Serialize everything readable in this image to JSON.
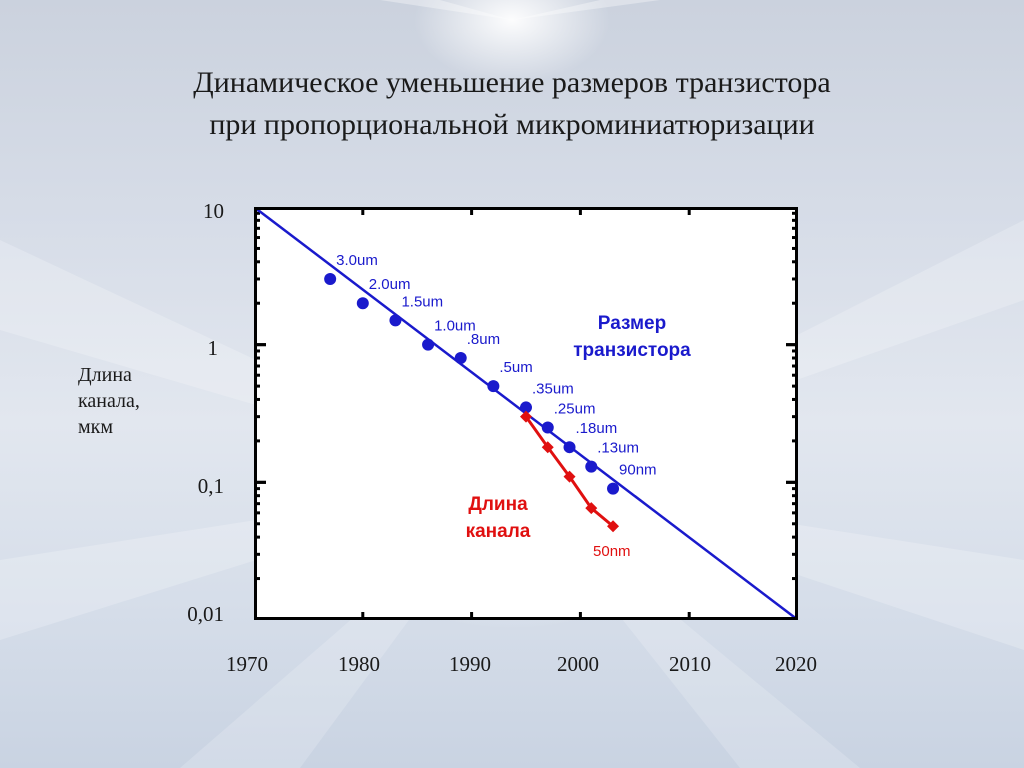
{
  "title": {
    "line1": "Динамическое уменьшение размеров транзистора",
    "line2": "при пропорциональной микроминиатюризации"
  },
  "ylabel": {
    "line1": "Длина",
    "line2": "канала,",
    "line3": "мкм"
  },
  "chart_data": {
    "type": "scatter",
    "title": "Динамическое уменьшение размеров транзистора при пропорциональной микроминиатюризации",
    "xlabel": "",
    "ylabel": "Длина канала, мкм",
    "xlim": [
      1970,
      2020
    ],
    "ylim": [
      0.01,
      10
    ],
    "yscale": "log",
    "x_ticks": [
      "1970",
      "1980",
      "1990",
      "2000",
      "2010",
      "2020"
    ],
    "y_ticks": [
      "10",
      "1",
      "0,1",
      "0,01"
    ],
    "y_tick_values": [
      10,
      1,
      0.1,
      0.01
    ],
    "grid": false,
    "series": [
      {
        "name": "Размер транзистора",
        "name_lines": [
          "Размер",
          "транзистора"
        ],
        "color": "#1a1acc",
        "marker": "circle",
        "points": [
          {
            "x": 1977,
            "y": 3.0,
            "label": "3.0um"
          },
          {
            "x": 1980,
            "y": 2.0,
            "label": "2.0um"
          },
          {
            "x": 1983,
            "y": 1.5,
            "label": "1.5um"
          },
          {
            "x": 1986,
            "y": 1.0,
            "label": "1.0um"
          },
          {
            "x": 1989,
            "y": 0.8,
            "label": ".8um"
          },
          {
            "x": 1992,
            "y": 0.5,
            "label": ".5um"
          },
          {
            "x": 1995,
            "y": 0.35,
            "label": ".35um"
          },
          {
            "x": 1997,
            "y": 0.25,
            "label": ".25um"
          },
          {
            "x": 1999,
            "y": 0.18,
            "label": ".18um"
          },
          {
            "x": 2001,
            "y": 0.13,
            "label": ".13um"
          },
          {
            "x": 2003,
            "y": 0.09,
            "label": "90nm"
          }
        ],
        "trend_line": {
          "x": [
            1970,
            2020
          ],
          "y": [
            10,
            0.01
          ]
        }
      },
      {
        "name": "Длина канала",
        "name_lines": [
          "Длина",
          "канала"
        ],
        "color": "#e01010",
        "marker": "diamond",
        "points": [
          {
            "x": 1995,
            "y": 0.3
          },
          {
            "x": 1997,
            "y": 0.18
          },
          {
            "x": 1999,
            "y": 0.11
          },
          {
            "x": 2001,
            "y": 0.065
          },
          {
            "x": 2003,
            "y": 0.048,
            "label": "50nm"
          }
        ]
      }
    ]
  }
}
